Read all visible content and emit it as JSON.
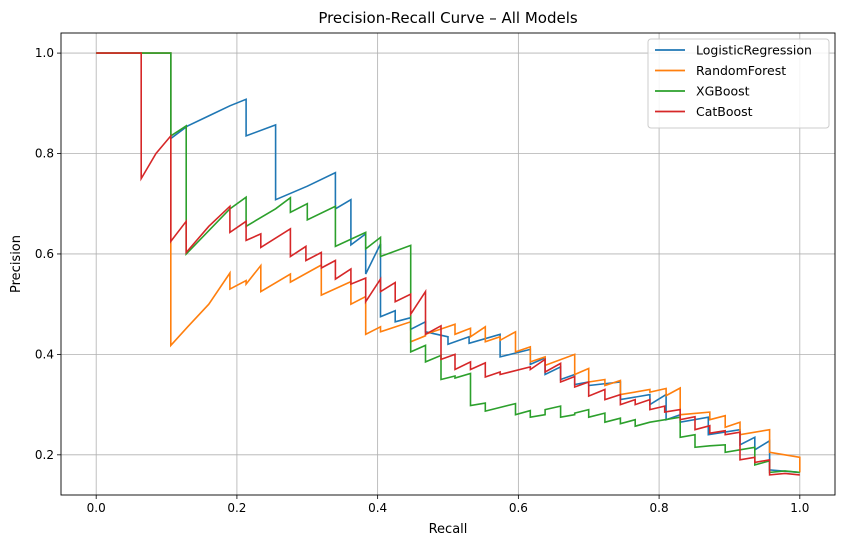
{
  "chart_data": {
    "type": "line",
    "title": "Precision-Recall Curve – All Models",
    "xlabel": "Recall",
    "ylabel": "Precision",
    "xlim": [
      -0.05,
      1.05
    ],
    "ylim": [
      0.12,
      1.04
    ],
    "xticks": [
      0.0,
      0.2,
      0.4,
      0.6,
      0.8,
      1.0
    ],
    "xtick_labels": [
      "0.0",
      "0.2",
      "0.4",
      "0.6",
      "0.8",
      "1.0"
    ],
    "yticks": [
      0.2,
      0.4,
      0.6,
      0.8,
      1.0
    ],
    "ytick_labels": [
      "0.2",
      "0.4",
      "0.6",
      "0.8",
      "1.0"
    ],
    "grid": true,
    "legend_position": "top-right",
    "series": [
      {
        "name": "LogisticRegression",
        "color": "#1f77b4",
        "points": [
          [
            0,
            1.0
          ],
          [
            0.106,
            1.0
          ],
          [
            0.106,
            0.83
          ],
          [
            0.13,
            0.855
          ],
          [
            0.16,
            0.875
          ],
          [
            0.19,
            0.895
          ],
          [
            0.213,
            0.908
          ],
          [
            0.213,
            0.835
          ],
          [
            0.255,
            0.857
          ],
          [
            0.255,
            0.708
          ],
          [
            0.3,
            0.735
          ],
          [
            0.34,
            0.762
          ],
          [
            0.34,
            0.69
          ],
          [
            0.362,
            0.708
          ],
          [
            0.362,
            0.618
          ],
          [
            0.383,
            0.64
          ],
          [
            0.383,
            0.56
          ],
          [
            0.404,
            0.62
          ],
          [
            0.404,
            0.475
          ],
          [
            0.425,
            0.487
          ],
          [
            0.425,
            0.465
          ],
          [
            0.447,
            0.473
          ],
          [
            0.447,
            0.45
          ],
          [
            0.468,
            0.465
          ],
          [
            0.468,
            0.445
          ],
          [
            0.5,
            0.435
          ],
          [
            0.5,
            0.42
          ],
          [
            0.53,
            0.435
          ],
          [
            0.53,
            0.422
          ],
          [
            0.574,
            0.44
          ],
          [
            0.574,
            0.395
          ],
          [
            0.617,
            0.41
          ],
          [
            0.617,
            0.38
          ],
          [
            0.638,
            0.393
          ],
          [
            0.638,
            0.36
          ],
          [
            0.66,
            0.375
          ],
          [
            0.66,
            0.35
          ],
          [
            0.68,
            0.36
          ],
          [
            0.68,
            0.34
          ],
          [
            0.7,
            0.345
          ],
          [
            0.7,
            0.338
          ],
          [
            0.745,
            0.345
          ],
          [
            0.745,
            0.31
          ],
          [
            0.787,
            0.32
          ],
          [
            0.787,
            0.3
          ],
          [
            0.81,
            0.32
          ],
          [
            0.81,
            0.27
          ],
          [
            0.83,
            0.28
          ],
          [
            0.83,
            0.265
          ],
          [
            0.87,
            0.275
          ],
          [
            0.87,
            0.24
          ],
          [
            0.915,
            0.25
          ],
          [
            0.915,
            0.22
          ],
          [
            0.936,
            0.235
          ],
          [
            0.936,
            0.21
          ],
          [
            0.957,
            0.228
          ],
          [
            0.957,
            0.17
          ],
          [
            1.0,
            0.165
          ]
        ]
      },
      {
        "name": "RandomForest",
        "color": "#ff7f0e",
        "points": [
          [
            0,
            1.0
          ],
          [
            0.106,
            1.0
          ],
          [
            0.106,
            0.418
          ],
          [
            0.13,
            0.455
          ],
          [
            0.16,
            0.5
          ],
          [
            0.19,
            0.562
          ],
          [
            0.19,
            0.53
          ],
          [
            0.213,
            0.547
          ],
          [
            0.213,
            0.54
          ],
          [
            0.234,
            0.577
          ],
          [
            0.234,
            0.525
          ],
          [
            0.276,
            0.56
          ],
          [
            0.276,
            0.544
          ],
          [
            0.32,
            0.578
          ],
          [
            0.32,
            0.518
          ],
          [
            0.362,
            0.545
          ],
          [
            0.362,
            0.5
          ],
          [
            0.383,
            0.515
          ],
          [
            0.383,
            0.44
          ],
          [
            0.404,
            0.455
          ],
          [
            0.404,
            0.445
          ],
          [
            0.447,
            0.465
          ],
          [
            0.447,
            0.425
          ],
          [
            0.468,
            0.437
          ],
          [
            0.468,
            0.44
          ],
          [
            0.51,
            0.46
          ],
          [
            0.51,
            0.44
          ],
          [
            0.532,
            0.452
          ],
          [
            0.532,
            0.435
          ],
          [
            0.553,
            0.455
          ],
          [
            0.553,
            0.425
          ],
          [
            0.574,
            0.435
          ],
          [
            0.574,
            0.428
          ],
          [
            0.596,
            0.445
          ],
          [
            0.596,
            0.405
          ],
          [
            0.617,
            0.415
          ],
          [
            0.617,
            0.385
          ],
          [
            0.638,
            0.395
          ],
          [
            0.638,
            0.378
          ],
          [
            0.68,
            0.4
          ],
          [
            0.68,
            0.36
          ],
          [
            0.7,
            0.372
          ],
          [
            0.7,
            0.345
          ],
          [
            0.723,
            0.35
          ],
          [
            0.723,
            0.338
          ],
          [
            0.745,
            0.348
          ],
          [
            0.745,
            0.32
          ],
          [
            0.787,
            0.33
          ],
          [
            0.787,
            0.325
          ],
          [
            0.81,
            0.332
          ],
          [
            0.81,
            0.318
          ],
          [
            0.83,
            0.333
          ],
          [
            0.83,
            0.28
          ],
          [
            0.872,
            0.285
          ],
          [
            0.872,
            0.27
          ],
          [
            0.894,
            0.278
          ],
          [
            0.894,
            0.255
          ],
          [
            0.915,
            0.265
          ],
          [
            0.915,
            0.24
          ],
          [
            0.957,
            0.25
          ],
          [
            0.957,
            0.205
          ],
          [
            1.0,
            0.195
          ],
          [
            1.0,
            0.165
          ]
        ]
      },
      {
        "name": "XGBoost",
        "color": "#2ca02c",
        "points": [
          [
            0,
            1.0
          ],
          [
            0.106,
            1.0
          ],
          [
            0.106,
            0.835
          ],
          [
            0.128,
            0.855
          ],
          [
            0.128,
            0.6
          ],
          [
            0.19,
            0.69
          ],
          [
            0.213,
            0.713
          ],
          [
            0.213,
            0.655
          ],
          [
            0.255,
            0.69
          ],
          [
            0.276,
            0.712
          ],
          [
            0.276,
            0.683
          ],
          [
            0.3,
            0.7
          ],
          [
            0.3,
            0.668
          ],
          [
            0.34,
            0.695
          ],
          [
            0.34,
            0.615
          ],
          [
            0.383,
            0.643
          ],
          [
            0.383,
            0.61
          ],
          [
            0.404,
            0.633
          ],
          [
            0.404,
            0.595
          ],
          [
            0.447,
            0.617
          ],
          [
            0.447,
            0.405
          ],
          [
            0.468,
            0.418
          ],
          [
            0.468,
            0.385
          ],
          [
            0.49,
            0.398
          ],
          [
            0.49,
            0.35
          ],
          [
            0.51,
            0.357
          ],
          [
            0.51,
            0.353
          ],
          [
            0.532,
            0.362
          ],
          [
            0.532,
            0.298
          ],
          [
            0.553,
            0.303
          ],
          [
            0.553,
            0.287
          ],
          [
            0.596,
            0.302
          ],
          [
            0.596,
            0.28
          ],
          [
            0.617,
            0.288
          ],
          [
            0.617,
            0.275
          ],
          [
            0.638,
            0.28
          ],
          [
            0.638,
            0.29
          ],
          [
            0.66,
            0.297
          ],
          [
            0.66,
            0.275
          ],
          [
            0.68,
            0.28
          ],
          [
            0.68,
            0.283
          ],
          [
            0.7,
            0.29
          ],
          [
            0.7,
            0.275
          ],
          [
            0.723,
            0.283
          ],
          [
            0.723,
            0.265
          ],
          [
            0.745,
            0.273
          ],
          [
            0.745,
            0.262
          ],
          [
            0.766,
            0.27
          ],
          [
            0.766,
            0.257
          ],
          [
            0.787,
            0.265
          ],
          [
            0.787,
            0.265
          ],
          [
            0.83,
            0.275
          ],
          [
            0.83,
            0.235
          ],
          [
            0.851,
            0.24
          ],
          [
            0.851,
            0.215
          ],
          [
            0.872,
            0.218
          ],
          [
            0.872,
            0.218
          ],
          [
            0.894,
            0.22
          ],
          [
            0.894,
            0.205
          ],
          [
            0.936,
            0.215
          ],
          [
            0.936,
            0.18
          ],
          [
            0.957,
            0.188
          ],
          [
            0.957,
            0.165
          ],
          [
            0.979,
            0.168
          ],
          [
            0.979,
            0.168
          ],
          [
            1.0,
            0.165
          ]
        ]
      },
      {
        "name": "CatBoost",
        "color": "#d62728",
        "points": [
          [
            0,
            1.0
          ],
          [
            0.064,
            1.0
          ],
          [
            0.064,
            0.75
          ],
          [
            0.085,
            0.8
          ],
          [
            0.106,
            0.835
          ],
          [
            0.106,
            0.625
          ],
          [
            0.128,
            0.665
          ],
          [
            0.128,
            0.603
          ],
          [
            0.16,
            0.655
          ],
          [
            0.19,
            0.695
          ],
          [
            0.19,
            0.643
          ],
          [
            0.213,
            0.665
          ],
          [
            0.213,
            0.627
          ],
          [
            0.234,
            0.64
          ],
          [
            0.234,
            0.613
          ],
          [
            0.276,
            0.65
          ],
          [
            0.276,
            0.595
          ],
          [
            0.298,
            0.615
          ],
          [
            0.298,
            0.587
          ],
          [
            0.32,
            0.603
          ],
          [
            0.32,
            0.572
          ],
          [
            0.34,
            0.587
          ],
          [
            0.34,
            0.55
          ],
          [
            0.362,
            0.57
          ],
          [
            0.362,
            0.54
          ],
          [
            0.383,
            0.552
          ],
          [
            0.383,
            0.505
          ],
          [
            0.404,
            0.55
          ],
          [
            0.404,
            0.525
          ],
          [
            0.425,
            0.543
          ],
          [
            0.425,
            0.505
          ],
          [
            0.447,
            0.52
          ],
          [
            0.447,
            0.48
          ],
          [
            0.468,
            0.525
          ],
          [
            0.468,
            0.44
          ],
          [
            0.49,
            0.457
          ],
          [
            0.49,
            0.39
          ],
          [
            0.51,
            0.4
          ],
          [
            0.51,
            0.37
          ],
          [
            0.532,
            0.385
          ],
          [
            0.532,
            0.37
          ],
          [
            0.553,
            0.383
          ],
          [
            0.553,
            0.355
          ],
          [
            0.574,
            0.365
          ],
          [
            0.574,
            0.36
          ],
          [
            0.617,
            0.375
          ],
          [
            0.617,
            0.37
          ],
          [
            0.638,
            0.39
          ],
          [
            0.638,
            0.365
          ],
          [
            0.66,
            0.382
          ],
          [
            0.66,
            0.345
          ],
          [
            0.68,
            0.356
          ],
          [
            0.68,
            0.335
          ],
          [
            0.7,
            0.345
          ],
          [
            0.7,
            0.317
          ],
          [
            0.723,
            0.33
          ],
          [
            0.723,
            0.31
          ],
          [
            0.745,
            0.32
          ],
          [
            0.745,
            0.3
          ],
          [
            0.766,
            0.31
          ],
          [
            0.766,
            0.3
          ],
          [
            0.787,
            0.31
          ],
          [
            0.787,
            0.29
          ],
          [
            0.808,
            0.297
          ],
          [
            0.808,
            0.285
          ],
          [
            0.83,
            0.29
          ],
          [
            0.83,
            0.27
          ],
          [
            0.851,
            0.276
          ],
          [
            0.851,
            0.25
          ],
          [
            0.872,
            0.258
          ],
          [
            0.872,
            0.243
          ],
          [
            0.894,
            0.248
          ],
          [
            0.894,
            0.24
          ],
          [
            0.915,
            0.245
          ],
          [
            0.915,
            0.19
          ],
          [
            0.936,
            0.195
          ],
          [
            0.936,
            0.185
          ],
          [
            0.957,
            0.19
          ],
          [
            0.957,
            0.16
          ],
          [
            0.979,
            0.163
          ],
          [
            0.979,
            0.163
          ],
          [
            1.0,
            0.16
          ]
        ]
      }
    ]
  }
}
